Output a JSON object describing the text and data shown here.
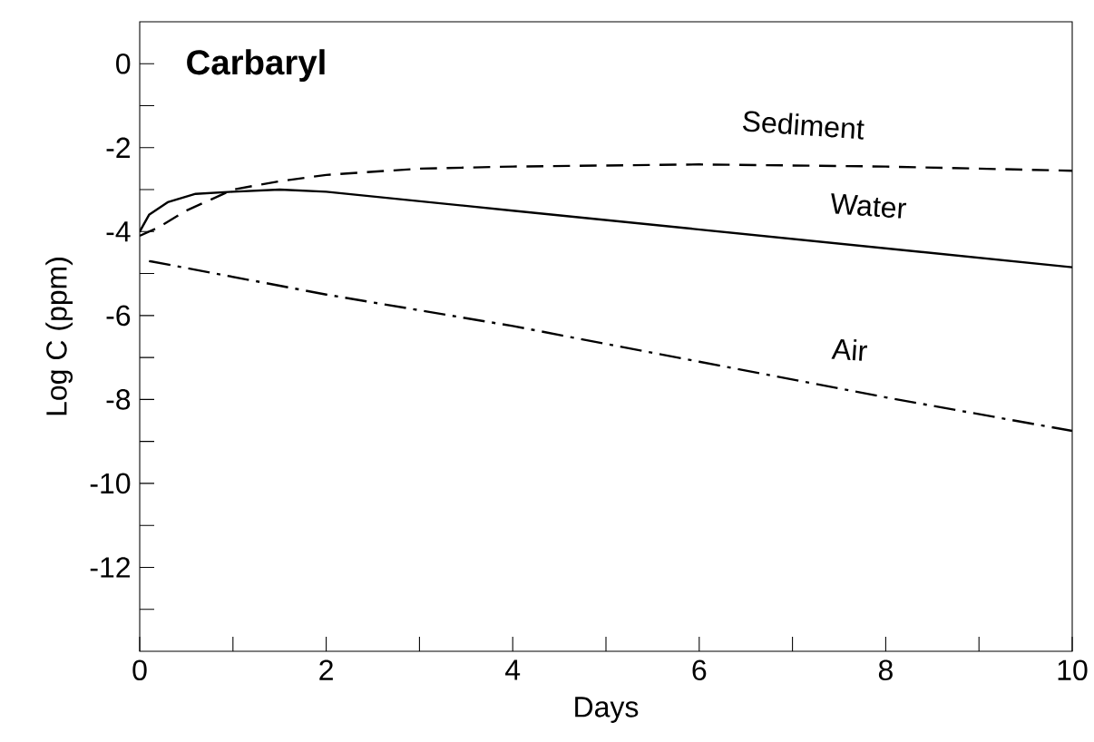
{
  "chart_data": {
    "type": "line",
    "title": "Carbaryl",
    "xlabel": "Days",
    "ylabel": "Log C (ppm)",
    "xlim": [
      0,
      10
    ],
    "ylim": [
      -14,
      1
    ],
    "xticks": [
      0,
      {
        "value": 1,
        "label": null
      },
      2,
      {
        "value": 3,
        "label": null
      },
      4,
      {
        "value": 5,
        "label": null
      },
      6,
      {
        "value": 7,
        "label": null
      },
      8,
      {
        "value": 9,
        "label": null
      },
      10
    ],
    "yticks": [
      {
        "value": -13,
        "label": null
      },
      -12,
      {
        "value": -11,
        "label": null
      },
      -10,
      {
        "value": -9,
        "label": null
      },
      -8,
      {
        "value": -7,
        "label": null
      },
      -6,
      {
        "value": -5,
        "label": null
      },
      -4,
      {
        "value": -3,
        "label": null
      },
      -2,
      {
        "value": -1,
        "label": null
      },
      0
    ],
    "grid": false,
    "series": [
      {
        "name": "Sediment",
        "color": "#000000",
        "line_style": "dashed",
        "x": [
          0,
          0.2,
          0.5,
          1,
          1.5,
          2,
          3,
          4,
          6,
          8,
          10
        ],
        "values": [
          -4.1,
          -3.9,
          -3.5,
          -3.0,
          -2.8,
          -2.65,
          -2.5,
          -2.45,
          -2.4,
          -2.45,
          -2.55
        ]
      },
      {
        "name": "Water",
        "color": "#000000",
        "line_style": "solid",
        "x": [
          0,
          0.1,
          0.3,
          0.6,
          1,
          1.5,
          2,
          4,
          6,
          8,
          10
        ],
        "values": [
          -4.0,
          -3.6,
          -3.3,
          -3.1,
          -3.05,
          -3.0,
          -3.05,
          -3.5,
          -3.95,
          -4.4,
          -4.85
        ]
      },
      {
        "name": "Air",
        "color": "#000000",
        "line_style": "dashdot",
        "x": [
          0.1,
          2,
          4,
          6,
          8,
          10
        ],
        "values": [
          -4.7,
          -5.5,
          -6.25,
          -7.1,
          -7.95,
          -8.75
        ]
      }
    ]
  }
}
